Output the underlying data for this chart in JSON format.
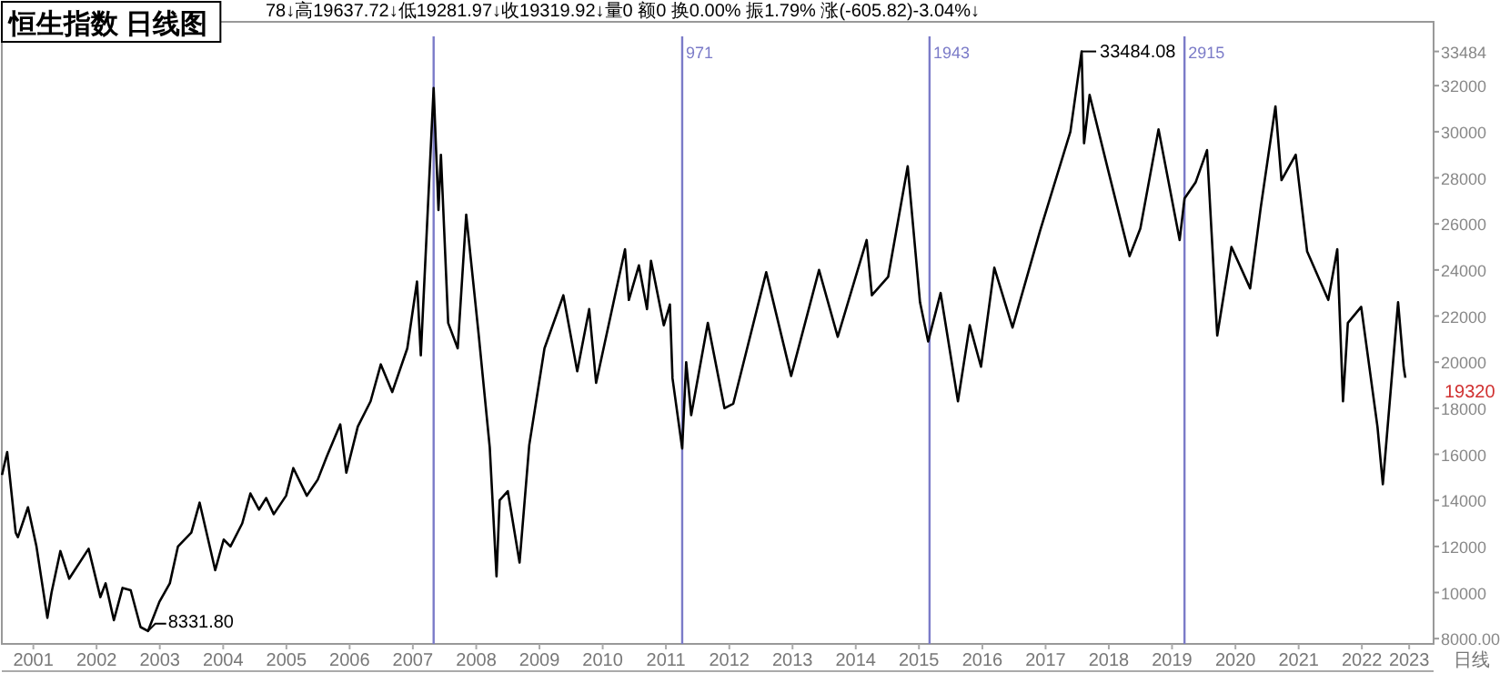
{
  "chart_data": {
    "type": "line",
    "title": "恒生指数  日线图",
    "xlabel": "日线",
    "annotations": [
      "78↓高19637.72↓低19281.97↓收19319.92↓量0 额0 换0.00% 振1.79% 涨(-605.82)-3.04%↓",
      {
        "text": "8331.80",
        "x": "2003-04-25",
        "y": 8332
      },
      {
        "text": "33484.08",
        "x": "2018-01-26",
        "y": 33484
      },
      {
        "text": "19320",
        "x": "2023-03-10",
        "y": 19320
      }
    ],
    "series": [
      {
        "color": "#000000",
        "x": [
          "2001-01-02",
          "2001-02-01",
          "2001-03-22",
          "2001-04-04",
          "2001-06-01",
          "2001-07-20",
          "2001-09-21",
          "2001-10-15",
          "2001-12-05",
          "2002-01-25",
          "2002-05-17",
          "2002-07-24",
          "2002-08-23",
          "2002-10-10",
          "2002-11-29",
          "2003-01-15",
          "2003-03-13",
          "2003-04-25",
          "2003-06-30",
          "2003-08-29",
          "2003-10-15",
          "2003-12-31",
          "2004-02-17",
          "2004-05-17",
          "2004-07-05",
          "2004-08-13",
          "2004-10-20",
          "2004-12-06",
          "2005-01-25",
          "2005-03-07",
          "2005-04-20",
          "2005-06-30",
          "2005-08-11",
          "2005-10-28",
          "2005-12-30",
          "2006-02-20",
          "2006-05-09",
          "2006-06-13",
          "2006-08-18",
          "2006-10-31",
          "2006-12-29",
          "2007-03-05",
          "2007-05-31",
          "2007-07-26",
          "2007-08-17",
          "2007-10-30",
          "2007-11-27",
          "2007-12-11",
          "2008-01-22",
          "2008-03-17",
          "2008-05-05",
          "2008-07-16",
          "2008-09-18",
          "2008-10-27",
          "2008-11-14",
          "2008-12-31",
          "2009-03-09",
          "2009-05-04",
          "2009-07-31",
          "2009-11-17",
          "2010-02-05",
          "2010-04-15",
          "2010-05-25",
          "2010-11-08",
          "2010-11-30",
          "2011-01-27",
          "2011-03-15",
          "2011-04-07",
          "2011-06-20",
          "2011-07-25",
          "2011-08-09",
          "2011-10-04",
          "2011-10-27",
          "2011-11-25",
          "2012-02-29",
          "2012-06-04",
          "2012-07-25",
          "2013-01-31",
          "2013-06-24",
          "2013-12-02",
          "2014-03-20",
          "2014-09-03",
          "2014-10-03",
          "2015-01-05",
          "2015-04-28",
          "2015-07-08",
          "2015-08-24",
          "2015-11-04",
          "2016-02-12",
          "2016-04-20",
          "2016-06-24",
          "2016-09-09",
          "2016-12-23",
          "2017-05-31",
          "2017-11-22",
          "2018-01-26",
          "2018-02-09",
          "2018-03-13",
          "2018-06-29",
          "2018-10-30",
          "2018-12-31",
          "2019-04-15",
          "2019-08-15",
          "2019-09-12",
          "2019-11-15",
          "2020-01-20",
          "2020-03-19",
          "2020-06-09",
          "2020-09-25",
          "2020-11-25",
          "2021-02-18",
          "2021-03-25",
          "2021-06-15",
          "2021-08-20",
          "2021-12-20",
          "2022-02-10",
          "2022-03-15",
          "2022-04-12",
          "2022-06-28",
          "2022-09-30",
          "2022-10-31",
          "2023-01-27",
          "2023-02-28",
          "2023-03-10"
        ],
        "values": [
          15100,
          16100,
          12600,
          12400,
          13700,
          12000,
          8900,
          10000,
          11800,
          10600,
          11900,
          9800,
          10400,
          8800,
          10200,
          10100,
          8500,
          8330,
          9600,
          10400,
          12000,
          12600,
          13900,
          10970,
          12300,
          12000,
          13000,
          14300,
          13600,
          14100,
          13400,
          14200,
          15400,
          14200,
          14900,
          15900,
          17300,
          15200,
          17200,
          18300,
          19900,
          18700,
          20600,
          23500,
          20300,
          31900,
          26600,
          29000,
          21700,
          20600,
          26400,
          21200,
          16300,
          10700,
          14000,
          14400,
          11300,
          16400,
          20600,
          22900,
          19600,
          22300,
          19100,
          24900,
          22700,
          24200,
          22300,
          24400,
          21600,
          22500,
          19300,
          16250,
          20000,
          17700,
          21700,
          18000,
          18200,
          23900,
          19400,
          24000,
          21100,
          25300,
          22900,
          23700,
          28500,
          22600,
          20900,
          23000,
          18300,
          21600,
          19800,
          24100,
          21500,
          25700,
          30000,
          33484,
          29500,
          31600,
          28300,
          24600,
          25800,
          30100,
          25300,
          27100,
          27800,
          29200,
          21150,
          25000,
          23200,
          26700,
          31100,
          27900,
          29000,
          24800,
          22700,
          24900,
          18300,
          21700,
          22400,
          17200,
          14700,
          22600,
          19800,
          19320
        ]
      }
    ],
    "xlim": [
      "2001-01-01",
      "2023-08-20"
    ],
    "xticks": [
      {
        "value": "2001-07-02",
        "label": "2001"
      },
      {
        "value": "2002-07-02",
        "label": "2002"
      },
      {
        "value": "2003-07-02",
        "label": "2003"
      },
      {
        "value": "2004-07-02",
        "label": "2004"
      },
      {
        "value": "2005-07-02",
        "label": "2005"
      },
      {
        "value": "2006-07-02",
        "label": "2006"
      },
      {
        "value": "2007-07-02",
        "label": "2007"
      },
      {
        "value": "2008-07-02",
        "label": "2008"
      },
      {
        "value": "2009-07-02",
        "label": "2009"
      },
      {
        "value": "2010-07-02",
        "label": "2010"
      },
      {
        "value": "2011-07-02",
        "label": "2011"
      },
      {
        "value": "2012-07-02",
        "label": "2012"
      },
      {
        "value": "2013-07-02",
        "label": "2013"
      },
      {
        "value": "2014-07-02",
        "label": "2014"
      },
      {
        "value": "2015-07-02",
        "label": "2015"
      },
      {
        "value": "2016-07-02",
        "label": "2016"
      },
      {
        "value": "2017-07-02",
        "label": "2017"
      },
      {
        "value": "2018-07-02",
        "label": "2018"
      },
      {
        "value": "2019-07-02",
        "label": "2019"
      },
      {
        "value": "2020-07-02",
        "label": "2020"
      },
      {
        "value": "2021-07-02",
        "label": "2021"
      },
      {
        "value": "2022-07-02",
        "label": "2022"
      },
      {
        "value": "2023-04-01",
        "label": "2023"
      }
    ],
    "ylim": [
      7770,
      34770
    ],
    "yticks": [
      {
        "value": 8000,
        "label": "8000.00"
      },
      10000,
      12000,
      14000,
      16000,
      18000,
      20000,
      22000,
      24000,
      26000,
      28000,
      30000,
      32000,
      33484
    ],
    "ref_lines": [
      {
        "axis": "x",
        "value": "2007-10-30",
        "label": null,
        "color": "#7b7bc8"
      },
      {
        "axis": "x",
        "value": "2011-10-04",
        "label": "971",
        "color": "#7b7bc8"
      },
      {
        "axis": "x",
        "value": "2015-09-01",
        "label": "1943",
        "color": "#7b7bc8"
      },
      {
        "axis": "x",
        "value": "2019-09-12",
        "label": "2915",
        "color": "#7b7bc8"
      }
    ],
    "line_style": "solid"
  }
}
